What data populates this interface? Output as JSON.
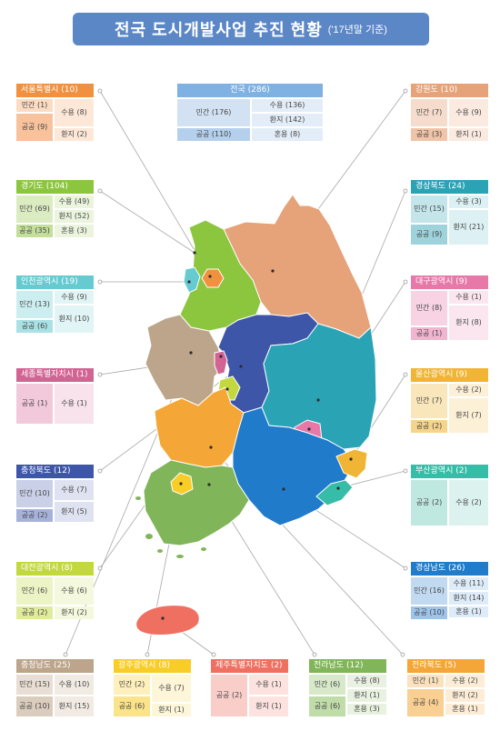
{
  "header": {
    "title": "전국 도시개발사업 추진 현황",
    "subtitle": "('17년말 기준)"
  },
  "national": {
    "name": "전국 (286)",
    "cells": [
      "민간 (176)",
      "수용 (136)",
      "환지 (142)",
      "공공 (110)",
      "혼용 (8)"
    ]
  },
  "cards": {
    "seoul": {
      "name": "서울특별시 (10)",
      "cells": [
        "민간 (1)",
        "수용 (8)",
        "공공 (9)",
        "환지 (2)"
      ]
    },
    "gyeonggi": {
      "name": "경기도 (104)",
      "cells": [
        "수용 (49)",
        "민간 (69)",
        "환지 (52)",
        "공공 (35)",
        "혼용 (3)"
      ]
    },
    "incheon": {
      "name": "인천광역시 (19)",
      "cells": [
        "민간 (13)",
        "수용 (9)",
        "공공 (6)",
        "환지 (10)"
      ]
    },
    "sejong": {
      "name": "세종특별자치시 (1)",
      "cells": [
        "공공 (1)",
        "수용 (1)"
      ]
    },
    "chungbuk": {
      "name": "충청북도 (12)",
      "cells": [
        "민간 (10)",
        "수용 (7)",
        "공공 (2)",
        "환지 (5)"
      ]
    },
    "daejeon": {
      "name": "대전광역시 (8)",
      "cells": [
        "민간 (6)",
        "수용 (6)",
        "공공 (2)",
        "환지 (2)"
      ]
    },
    "chungnam": {
      "name": "충청남도 (25)",
      "cells": [
        "민간 (15)",
        "수용 (10)",
        "공공 (10)",
        "환지 (15)"
      ]
    },
    "gwangju": {
      "name": "광주광역시 (8)",
      "cells": [
        "민간 (2)",
        "수용 (7)",
        "공공 (6)",
        "환지 (1)"
      ]
    },
    "jeju": {
      "name": "제주특별자치도 (2)",
      "cells": [
        "공공 (2)",
        "수용 (1)",
        "환지 (1)"
      ]
    },
    "jeonnam": {
      "name": "전라남도 (12)",
      "cells": [
        "민간 (6)",
        "수용 (8)",
        "공공 (6)",
        "환지 (1)",
        "혼용 (3)"
      ]
    },
    "jeonbuk": {
      "name": "전라북도 (5)",
      "cells": [
        "민간 (1)",
        "수용 (2)",
        "공공 (4)",
        "환지 (2)",
        "혼용 (1)"
      ]
    },
    "gangwon": {
      "name": "강원도 (10)",
      "cells": [
        "민간 (7)",
        "수용 (9)",
        "공공 (3)",
        "환지 (1)"
      ]
    },
    "gyeongbuk": {
      "name": "경상북도 (24)",
      "cells": [
        "수용 (3)",
        "민간 (15)",
        "환지 (21)",
        "공공 (9)"
      ]
    },
    "daegu": {
      "name": "대구광역시 (9)",
      "cells": [
        "수용 (1)",
        "민간 (8)",
        "환지 (8)",
        "공공 (1)"
      ]
    },
    "ulsan": {
      "name": "울산광역시 (9)",
      "cells": [
        "수용 (2)",
        "민간 (7)",
        "환지 (7)",
        "공공 (2)"
      ]
    },
    "busan": {
      "name": "부산광역시 (2)",
      "cells": [
        "공공 (2)",
        "수용 (2)"
      ]
    },
    "gyeongnam": {
      "name": "경상남도 (26)",
      "cells": [
        "수용 (11)",
        "민간 (16)",
        "환지 (14)",
        "공공 (10)",
        "혼용 (1)"
      ]
    }
  },
  "colors": {
    "title_bar": "#5b87c6",
    "national": "#7fb1e3",
    "seoul": "#f1903e",
    "gyeonggi": "#8cc63f",
    "incheon": "#66cbd1",
    "sejong": "#d26494",
    "chungbuk": "#3e56a8",
    "daejeon": "#c2d83e",
    "chungnam": "#bca58a",
    "gwangju": "#f8cd28",
    "jeju": "#ef6f61",
    "jeonnam": "#80b55a",
    "jeonbuk": "#f4a736",
    "gangwon": "#e6a278",
    "gyeongbuk": "#2aa3b5",
    "daegu": "#e779a9",
    "ulsan": "#f0b534",
    "busan": "#36bda7",
    "gyeongnam": "#217bcb"
  }
}
